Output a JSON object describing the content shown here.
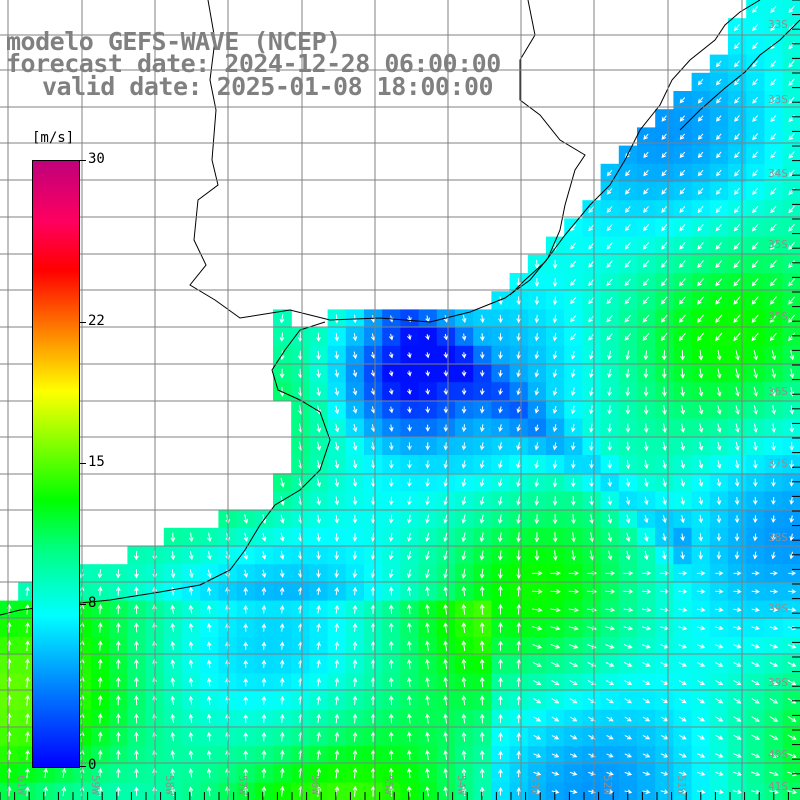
{
  "title": {
    "line1": "modelo GEFS-WAVE (NCEP)",
    "line2": "forecast date: 2024-12-28 06:00:00",
    "line3": "valid date: 2025-01-08 18:00:00"
  },
  "colorbar": {
    "units": "[m/s]",
    "ticks": [
      {
        "label": "30",
        "value": 30
      },
      {
        "label": "22",
        "value": 22
      },
      {
        "label": "15",
        "value": 15
      },
      {
        "label": "8",
        "value": 8
      },
      {
        "label": "0",
        "value": 0
      }
    ]
  },
  "axes": {
    "lon_labels": [
      "61W",
      "59W",
      "58W",
      "57W",
      "56W",
      "55W",
      "54W",
      "53W",
      "52W",
      "51W"
    ],
    "lat_labels": [
      "33S",
      "33S",
      "34S",
      "35S",
      "35S",
      "36S",
      "37S",
      "38S",
      "39S",
      "39S",
      "40S",
      "41S"
    ]
  },
  "colors": {
    "land": "#ffffff",
    "coast": "#000000",
    "grid": "#808080",
    "arrow": "#ffffff",
    "label": "#909090"
  }
}
